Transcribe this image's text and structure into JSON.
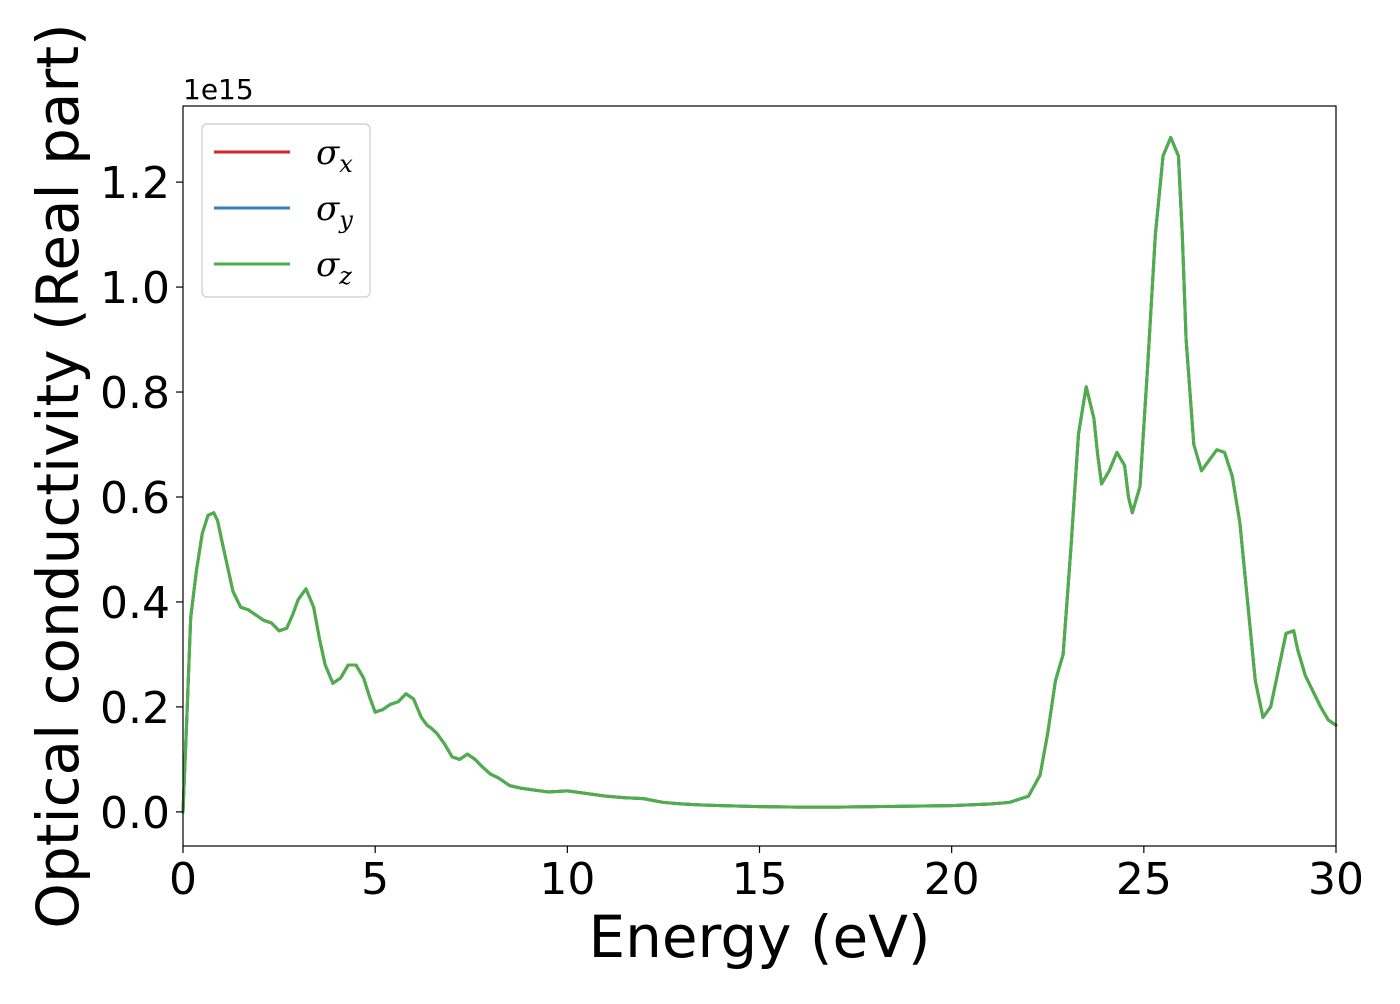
{
  "chart_data": {
    "type": "line",
    "xlabel": "Energy (eV)",
    "ylabel": "Optical conductivity (Real part)",
    "y_offset_label": "1e15",
    "xlim": [
      0,
      30
    ],
    "ylim": [
      -0.065,
      1.345
    ],
    "x_ticks": [
      0,
      5,
      10,
      15,
      20,
      25,
      30
    ],
    "x_tick_labels": [
      "0",
      "5",
      "10",
      "15",
      "20",
      "25",
      "30"
    ],
    "y_ticks": [
      0.0,
      0.2,
      0.4,
      0.6,
      0.8,
      1.0,
      1.2
    ],
    "y_tick_labels": [
      "0.0",
      "0.2",
      "0.4",
      "0.6",
      "0.8",
      "1.0",
      "1.2"
    ],
    "grid": false,
    "legend_position": "top-left",
    "x": [
      0,
      0.1,
      0.2,
      0.35,
      0.5,
      0.65,
      0.8,
      0.9,
      1.0,
      1.15,
      1.3,
      1.5,
      1.7,
      1.9,
      2.1,
      2.3,
      2.5,
      2.7,
      2.85,
      3.0,
      3.2,
      3.4,
      3.55,
      3.7,
      3.9,
      4.1,
      4.3,
      4.5,
      4.7,
      4.85,
      5.0,
      5.2,
      5.4,
      5.6,
      5.8,
      6.0,
      6.2,
      6.35,
      6.45,
      6.6,
      6.8,
      7.0,
      7.2,
      7.4,
      7.6,
      7.8,
      8.0,
      8.2,
      8.5,
      8.8,
      9.1,
      9.5,
      10.0,
      10.5,
      11.0,
      11.5,
      11.8,
      12.0,
      12.5,
      13.0,
      13.5,
      14.0,
      15.0,
      16.0,
      17.0,
      18.0,
      19.0,
      20.0,
      21.0,
      21.5,
      22.0,
      22.3,
      22.5,
      22.7,
      22.9,
      23.1,
      23.3,
      23.5,
      23.7,
      23.8,
      23.9,
      24.1,
      24.3,
      24.5,
      24.6,
      24.7,
      24.9,
      25.1,
      25.3,
      25.5,
      25.7,
      25.9,
      26.0,
      26.1,
      26.3,
      26.5,
      26.7,
      26.9,
      27.1,
      27.3,
      27.5,
      27.7,
      27.9,
      28.1,
      28.3,
      28.5,
      28.7,
      28.9,
      29.0,
      29.2,
      29.4,
      29.6,
      29.8,
      30.0
    ],
    "series": [
      {
        "name": "σx",
        "color": "#d62728",
        "y": [
          0.0,
          0.18,
          0.37,
          0.46,
          0.53,
          0.565,
          0.57,
          0.555,
          0.52,
          0.47,
          0.42,
          0.39,
          0.385,
          0.375,
          0.365,
          0.36,
          0.345,
          0.35,
          0.375,
          0.405,
          0.425,
          0.39,
          0.33,
          0.28,
          0.245,
          0.255,
          0.28,
          0.28,
          0.255,
          0.22,
          0.19,
          0.195,
          0.205,
          0.21,
          0.225,
          0.215,
          0.18,
          0.165,
          0.16,
          0.15,
          0.13,
          0.105,
          0.1,
          0.11,
          0.1,
          0.085,
          0.072,
          0.065,
          0.05,
          0.045,
          0.042,
          0.038,
          0.04,
          0.035,
          0.03,
          0.027,
          0.026,
          0.025,
          0.018,
          0.015,
          0.013,
          0.012,
          0.01,
          0.009,
          0.009,
          0.01,
          0.011,
          0.012,
          0.015,
          0.018,
          0.03,
          0.07,
          0.15,
          0.25,
          0.3,
          0.5,
          0.72,
          0.81,
          0.75,
          0.68,
          0.625,
          0.65,
          0.685,
          0.66,
          0.6,
          0.57,
          0.62,
          0.85,
          1.1,
          1.25,
          1.285,
          1.25,
          1.1,
          0.9,
          0.7,
          0.65,
          0.67,
          0.69,
          0.685,
          0.64,
          0.55,
          0.4,
          0.25,
          0.18,
          0.2,
          0.27,
          0.34,
          0.345,
          0.31,
          0.26,
          0.23,
          0.2,
          0.175,
          0.165
        ]
      },
      {
        "name": "σy",
        "color": "#3a7ebf",
        "y": [
          0.0,
          0.18,
          0.37,
          0.46,
          0.53,
          0.565,
          0.57,
          0.555,
          0.52,
          0.47,
          0.42,
          0.39,
          0.385,
          0.375,
          0.365,
          0.36,
          0.345,
          0.35,
          0.375,
          0.405,
          0.425,
          0.39,
          0.33,
          0.28,
          0.245,
          0.255,
          0.28,
          0.28,
          0.255,
          0.22,
          0.19,
          0.195,
          0.205,
          0.21,
          0.225,
          0.215,
          0.18,
          0.165,
          0.16,
          0.15,
          0.13,
          0.105,
          0.1,
          0.11,
          0.1,
          0.085,
          0.072,
          0.065,
          0.05,
          0.045,
          0.042,
          0.038,
          0.04,
          0.035,
          0.03,
          0.027,
          0.026,
          0.025,
          0.018,
          0.015,
          0.013,
          0.012,
          0.01,
          0.009,
          0.009,
          0.01,
          0.011,
          0.012,
          0.015,
          0.018,
          0.03,
          0.07,
          0.15,
          0.25,
          0.3,
          0.5,
          0.72,
          0.81,
          0.75,
          0.68,
          0.625,
          0.65,
          0.685,
          0.66,
          0.6,
          0.57,
          0.62,
          0.85,
          1.1,
          1.25,
          1.285,
          1.25,
          1.1,
          0.9,
          0.7,
          0.65,
          0.67,
          0.69,
          0.685,
          0.64,
          0.55,
          0.4,
          0.25,
          0.18,
          0.2,
          0.27,
          0.34,
          0.345,
          0.31,
          0.26,
          0.23,
          0.2,
          0.175,
          0.165
        ]
      },
      {
        "name": "σz",
        "color": "#4daf4a",
        "y": [
          0.0,
          0.18,
          0.37,
          0.46,
          0.53,
          0.565,
          0.57,
          0.555,
          0.52,
          0.47,
          0.42,
          0.39,
          0.385,
          0.375,
          0.365,
          0.36,
          0.345,
          0.35,
          0.375,
          0.405,
          0.425,
          0.39,
          0.33,
          0.28,
          0.245,
          0.255,
          0.28,
          0.28,
          0.255,
          0.22,
          0.19,
          0.195,
          0.205,
          0.21,
          0.225,
          0.215,
          0.18,
          0.165,
          0.16,
          0.15,
          0.13,
          0.105,
          0.1,
          0.11,
          0.1,
          0.085,
          0.072,
          0.065,
          0.05,
          0.045,
          0.042,
          0.038,
          0.04,
          0.035,
          0.03,
          0.027,
          0.026,
          0.025,
          0.018,
          0.015,
          0.013,
          0.012,
          0.01,
          0.009,
          0.009,
          0.01,
          0.011,
          0.012,
          0.015,
          0.018,
          0.03,
          0.07,
          0.15,
          0.25,
          0.3,
          0.5,
          0.72,
          0.81,
          0.75,
          0.68,
          0.625,
          0.65,
          0.685,
          0.66,
          0.6,
          0.57,
          0.62,
          0.85,
          1.1,
          1.25,
          1.285,
          1.25,
          1.1,
          0.9,
          0.7,
          0.65,
          0.67,
          0.69,
          0.685,
          0.64,
          0.55,
          0.4,
          0.25,
          0.18,
          0.2,
          0.27,
          0.34,
          0.345,
          0.31,
          0.26,
          0.23,
          0.2,
          0.175,
          0.165
        ]
      }
    ],
    "legend": [
      {
        "symbol": "σ",
        "subscript": "x",
        "color": "#d62728"
      },
      {
        "symbol": "σ",
        "subscript": "y",
        "color": "#3a7ebf"
      },
      {
        "symbol": "σ",
        "subscript": "z",
        "color": "#4daf4a"
      }
    ]
  }
}
